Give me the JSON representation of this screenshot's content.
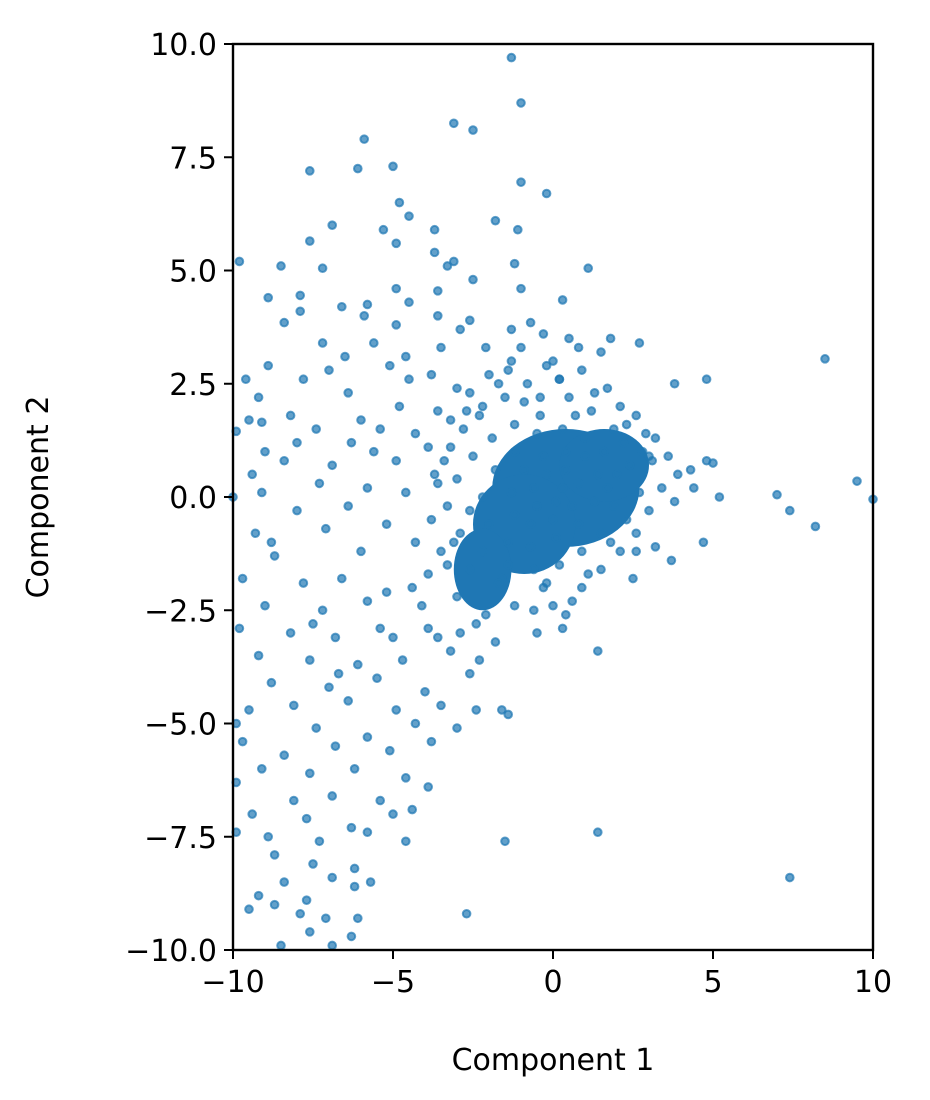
{
  "chart_data": {
    "type": "scatter",
    "title": "",
    "xlabel": "Component 1",
    "ylabel": "Component 2",
    "xlim": [
      -10,
      10
    ],
    "ylim": [
      -10,
      10
    ],
    "xticks": [
      -10,
      -5,
      0,
      5,
      10
    ],
    "xtick_labels": [
      "−10",
      "−5",
      "0",
      "5",
      "10"
    ],
    "yticks": [
      -10,
      -7.5,
      -5,
      -2.5,
      0,
      2.5,
      5,
      7.5,
      10
    ],
    "ytick_labels": [
      "−10.0",
      "−7.5",
      "−5.0",
      "−2.5",
      "0.0",
      "2.5",
      "5.0",
      "7.5",
      "10.0"
    ],
    "grid": false,
    "legend": "none",
    "marker_color": "#1f77b4",
    "marker_alpha": 0.7,
    "points": [
      [
        -1.3,
        9.7
      ],
      [
        -1.0,
        8.7
      ],
      [
        -3.1,
        8.25
      ],
      [
        -2.5,
        8.1
      ],
      [
        -5.9,
        7.9
      ],
      [
        -1.0,
        6.95
      ],
      [
        -6.1,
        7.25
      ],
      [
        -5.0,
        7.3
      ],
      [
        -7.6,
        7.2
      ],
      [
        -0.2,
        6.7
      ],
      [
        -4.8,
        6.5
      ],
      [
        -4.5,
        6.2
      ],
      [
        -1.8,
        6.1
      ],
      [
        -6.9,
        6.0
      ],
      [
        -5.3,
        5.9
      ],
      [
        -3.7,
        5.9
      ],
      [
        -1.1,
        5.9
      ],
      [
        -7.6,
        5.65
      ],
      [
        -4.9,
        5.6
      ],
      [
        -3.7,
        5.4
      ],
      [
        -9.8,
        5.2
      ],
      [
        -3.1,
        5.2
      ],
      [
        -3.3,
        5.1
      ],
      [
        -1.2,
        5.15
      ],
      [
        1.1,
        5.05
      ],
      [
        -8.5,
        5.1
      ],
      [
        -7.2,
        5.05
      ],
      [
        -2.5,
        4.8
      ],
      [
        -3.6,
        4.55
      ],
      [
        -4.9,
        4.6
      ],
      [
        -1.0,
        4.6
      ],
      [
        -7.9,
        4.45
      ],
      [
        -8.9,
        4.4
      ],
      [
        -4.5,
        4.3
      ],
      [
        -6.6,
        4.2
      ],
      [
        -5.8,
        4.25
      ],
      [
        0.3,
        4.35
      ],
      [
        -7.9,
        4.1
      ],
      [
        -3.6,
        4.0
      ],
      [
        -2.6,
        3.9
      ],
      [
        -5.9,
        4.0
      ],
      [
        -4.9,
        3.8
      ],
      [
        -1.3,
        3.7
      ],
      [
        -0.7,
        3.85
      ],
      [
        -2.9,
        3.7
      ],
      [
        -8.4,
        3.85
      ],
      [
        -0.3,
        3.6
      ],
      [
        0.5,
        3.5
      ],
      [
        1.8,
        3.5
      ],
      [
        -7.2,
        3.4
      ],
      [
        -5.6,
        3.4
      ],
      [
        -3.5,
        3.3
      ],
      [
        -1.0,
        3.3
      ],
      [
        0.8,
        3.3
      ],
      [
        2.7,
        3.4
      ],
      [
        -6.5,
        3.1
      ],
      [
        -4.6,
        3.1
      ],
      [
        -2.1,
        3.3
      ],
      [
        0.0,
        3.0
      ],
      [
        1.5,
        3.2
      ],
      [
        -8.9,
        2.9
      ],
      [
        -7.0,
        2.8
      ],
      [
        -5.1,
        2.9
      ],
      [
        -3.8,
        2.7
      ],
      [
        -1.4,
        2.8
      ],
      [
        -9.6,
        2.6
      ],
      [
        -7.8,
        2.6
      ],
      [
        -4.5,
        2.6
      ],
      [
        -1.7,
        2.5
      ],
      [
        0.2,
        2.6
      ],
      [
        3.8,
        2.5
      ],
      [
        4.8,
        2.6
      ],
      [
        -9.2,
        2.2
      ],
      [
        -6.4,
        2.3
      ],
      [
        -3.0,
        2.4
      ],
      [
        -2.2,
        2.0
      ],
      [
        -0.4,
        2.2
      ],
      [
        -8.2,
        1.8
      ],
      [
        -6.0,
        1.7
      ],
      [
        -4.8,
        2.0
      ],
      [
        -3.6,
        1.9
      ],
      [
        -9.5,
        1.7
      ],
      [
        -9.1,
        1.65
      ],
      [
        -5.4,
        1.5
      ],
      [
        -7.4,
        1.5
      ],
      [
        -2.7,
        1.9
      ],
      [
        -9.9,
        1.45
      ],
      [
        -8.0,
        1.2
      ],
      [
        -6.3,
        1.2
      ],
      [
        -4.3,
        1.4
      ],
      [
        -9.0,
        1.0
      ],
      [
        -5.6,
        1.0
      ],
      [
        -3.2,
        1.1
      ],
      [
        -8.4,
        0.8
      ],
      [
        -6.9,
        0.7
      ],
      [
        -4.9,
        0.8
      ],
      [
        -9.4,
        0.5
      ],
      [
        -7.3,
        0.3
      ],
      [
        -5.8,
        0.2
      ],
      [
        -3.7,
        0.5
      ],
      [
        -8.0,
        -0.3
      ],
      [
        -6.4,
        -0.2
      ],
      [
        -4.6,
        0.1
      ],
      [
        -9.3,
        -0.8
      ],
      [
        -7.1,
        -0.7
      ],
      [
        -5.2,
        -0.6
      ],
      [
        -8.7,
        -1.3
      ],
      [
        -6.0,
        -1.2
      ],
      [
        -4.3,
        -1.0
      ],
      [
        -9.7,
        -1.8
      ],
      [
        -7.8,
        -1.9
      ],
      [
        -6.6,
        -1.8
      ],
      [
        -5.2,
        -2.1
      ],
      [
        -3.9,
        -1.7
      ],
      [
        -9.0,
        -2.4
      ],
      [
        -7.2,
        -2.5
      ],
      [
        -5.8,
        -2.3
      ],
      [
        -4.1,
        -2.4
      ],
      [
        -3.0,
        -2.2
      ],
      [
        -9.8,
        -2.9
      ],
      [
        -8.2,
        -3.0
      ],
      [
        -6.8,
        -3.1
      ],
      [
        -5.4,
        -2.9
      ],
      [
        -3.6,
        -3.1
      ],
      [
        -2.4,
        -2.8
      ],
      [
        -9.2,
        -3.5
      ],
      [
        -7.6,
        -3.6
      ],
      [
        -6.1,
        -3.7
      ],
      [
        -4.7,
        -3.6
      ],
      [
        -3.2,
        -3.4
      ],
      [
        -8.8,
        -4.1
      ],
      [
        -7.0,
        -4.2
      ],
      [
        -5.5,
        -4.0
      ],
      [
        -4.0,
        -4.3
      ],
      [
        -2.6,
        -3.9
      ],
      [
        -9.5,
        -4.7
      ],
      [
        -8.1,
        -4.6
      ],
      [
        -6.4,
        -4.5
      ],
      [
        -4.9,
        -4.7
      ],
      [
        -3.5,
        -4.6
      ],
      [
        -9.9,
        -5.0
      ],
      [
        -7.4,
        -5.1
      ],
      [
        -5.8,
        -5.3
      ],
      [
        -4.3,
        -5.0
      ],
      [
        -3.0,
        -5.1
      ],
      [
        -2.4,
        -4.7
      ],
      [
        -9.7,
        -5.4
      ],
      [
        -8.4,
        -5.7
      ],
      [
        -6.8,
        -5.5
      ],
      [
        -5.1,
        -5.6
      ],
      [
        -3.8,
        -5.4
      ],
      [
        -9.1,
        -6.0
      ],
      [
        -7.6,
        -6.1
      ],
      [
        -6.2,
        -6.0
      ],
      [
        -4.6,
        -6.2
      ],
      [
        -9.9,
        -6.3
      ],
      [
        -8.1,
        -6.7
      ],
      [
        -6.9,
        -6.6
      ],
      [
        -5.4,
        -6.7
      ],
      [
        -3.9,
        -6.4
      ],
      [
        -9.4,
        -7.0
      ],
      [
        -7.7,
        -7.1
      ],
      [
        -6.3,
        -7.3
      ],
      [
        -5.0,
        -7.0
      ],
      [
        -4.4,
        -6.9
      ],
      [
        -9.9,
        -7.4
      ],
      [
        -8.9,
        -7.5
      ],
      [
        -7.3,
        -7.6
      ],
      [
        -5.8,
        -7.4
      ],
      [
        -4.6,
        -7.6
      ],
      [
        -8.7,
        -7.9
      ],
      [
        -7.5,
        -8.1
      ],
      [
        -6.2,
        -8.2
      ],
      [
        -5.7,
        -8.5
      ],
      [
        -8.4,
        -8.5
      ],
      [
        -6.9,
        -8.4
      ],
      [
        -9.2,
        -8.8
      ],
      [
        -7.7,
        -8.9
      ],
      [
        -6.2,
        -8.6
      ],
      [
        -9.5,
        -9.1
      ],
      [
        -8.7,
        -9.0
      ],
      [
        -7.9,
        -9.2
      ],
      [
        -7.1,
        -9.3
      ],
      [
        -6.1,
        -9.3
      ],
      [
        -2.7,
        -9.2
      ],
      [
        -7.6,
        -9.6
      ],
      [
        -6.3,
        -9.7
      ],
      [
        -8.5,
        -9.9
      ],
      [
        -6.9,
        -9.9
      ],
      [
        -1.5,
        -7.6
      ],
      [
        1.4,
        -7.4
      ],
      [
        7.4,
        -8.4
      ],
      [
        -1.6,
        -4.7
      ],
      [
        -1.4,
        -4.8
      ],
      [
        1.4,
        -3.4
      ],
      [
        2.5,
        -1.8
      ],
      [
        3.2,
        -1.1
      ],
      [
        3.8,
        -0.1
      ],
      [
        3.7,
        -1.4
      ],
      [
        4.7,
        -1.0
      ],
      [
        5.2,
        0.0
      ],
      [
        4.4,
        0.2
      ],
      [
        4.3,
        0.6
      ],
      [
        4.8,
        0.8
      ],
      [
        5.0,
        0.75
      ],
      [
        7.0,
        0.05
      ],
      [
        7.4,
        -0.3
      ],
      [
        8.2,
        -0.65
      ],
      [
        8.5,
        3.05
      ],
      [
        9.5,
        0.35
      ],
      [
        10.0,
        -0.05
      ],
      [
        -10.0,
        0.0
      ],
      [
        -9.1,
        0.1
      ],
      [
        -8.8,
        -1.0
      ],
      [
        -7.5,
        -2.8
      ],
      [
        -6.7,
        -3.9
      ],
      [
        -5.0,
        -3.1
      ],
      [
        -4.4,
        -2.0
      ],
      [
        -3.3,
        -1.5
      ],
      [
        -3.9,
        -2.9
      ],
      [
        -2.9,
        -3.0
      ],
      [
        -2.1,
        -2.6
      ],
      [
        -1.2,
        -2.4
      ],
      [
        -0.6,
        -2.5
      ],
      [
        0.0,
        -2.4
      ],
      [
        0.6,
        -2.3
      ],
      [
        -0.5,
        -3.0
      ],
      [
        0.3,
        -2.9
      ],
      [
        -1.8,
        -3.2
      ],
      [
        -2.3,
        -3.6
      ],
      [
        0.4,
        -2.6
      ],
      [
        -0.3,
        -2.0
      ],
      [
        -1.6,
        -1.8
      ],
      [
        -2.6,
        -1.6
      ],
      [
        -3.5,
        -1.2
      ],
      [
        -3.8,
        -0.5
      ],
      [
        -3.6,
        0.3
      ],
      [
        -3.9,
        1.1
      ],
      [
        -3.2,
        1.7
      ],
      [
        -2.6,
        2.3
      ],
      [
        -2.0,
        2.7
      ],
      [
        -1.3,
        3.0
      ],
      [
        -0.8,
        2.5
      ],
      [
        -0.2,
        2.9
      ],
      [
        0.9,
        2.8
      ],
      [
        1.3,
        2.3
      ],
      [
        2.1,
        2.0
      ],
      [
        2.6,
        1.8
      ],
      [
        2.9,
        1.4
      ],
      [
        3.2,
        1.3
      ],
      [
        3.6,
        0.9
      ],
      [
        3.9,
        0.5
      ],
      [
        3.4,
        0.2
      ],
      [
        3.0,
        -0.3
      ],
      [
        2.6,
        -0.8
      ],
      [
        2.1,
        -1.2
      ],
      [
        1.5,
        -1.6
      ],
      [
        0.9,
        -2.0
      ],
      [
        1.8,
        -1.0
      ],
      [
        2.3,
        -0.5
      ],
      [
        2.7,
        0.1
      ],
      [
        2.4,
        0.7
      ],
      [
        2.8,
        1.0
      ],
      [
        1.9,
        1.5
      ],
      [
        1.2,
        1.9
      ],
      [
        0.5,
        2.2
      ],
      [
        -0.4,
        1.8
      ],
      [
        -1.2,
        1.6
      ],
      [
        -1.9,
        1.3
      ],
      [
        -2.5,
        0.9
      ],
      [
        -3.0,
        0.4
      ],
      [
        -3.3,
        -0.2
      ],
      [
        -2.9,
        -0.8
      ],
      [
        -2.2,
        -1.2
      ],
      [
        -1.4,
        -1.5
      ],
      [
        -0.6,
        -1.6
      ],
      [
        0.2,
        -1.5
      ],
      [
        0.9,
        -1.2
      ],
      [
        1.5,
        -0.8
      ],
      [
        1.9,
        -0.2
      ],
      [
        2.0,
        0.5
      ],
      [
        1.6,
        1.0
      ],
      [
        1.0,
        1.3
      ],
      [
        0.3,
        1.5
      ],
      [
        -0.5,
        1.4
      ],
      [
        -1.2,
        1.0
      ],
      [
        -1.8,
        0.6
      ],
      [
        -2.2,
        0.0
      ],
      [
        -2.0,
        -0.6
      ],
      [
        -1.4,
        -1.0
      ],
      [
        -0.7,
        -1.1
      ],
      [
        0.1,
        -0.9
      ],
      [
        0.8,
        -0.6
      ],
      [
        1.3,
        -0.1
      ],
      [
        1.4,
        0.5
      ],
      [
        1.0,
        0.9
      ],
      [
        0.4,
        1.0
      ],
      [
        -0.3,
        0.9
      ],
      [
        -0.9,
        0.6
      ],
      [
        -1.3,
        0.1
      ],
      [
        -1.2,
        -0.4
      ],
      [
        -0.7,
        -0.6
      ],
      [
        0.0,
        -0.5
      ],
      [
        0.6,
        -0.2
      ],
      [
        0.8,
        0.3
      ],
      [
        0.4,
        0.6
      ],
      [
        -0.2,
        0.5
      ],
      [
        -0.6,
        0.2
      ],
      [
        -0.5,
        -0.2
      ],
      [
        0.1,
        -0.1
      ],
      [
        0.3,
        0.2
      ],
      [
        1.7,
        0.2
      ],
      [
        2.2,
        1.2
      ],
      [
        -2.6,
        -0.3
      ],
      [
        -3.1,
        -1.0
      ],
      [
        -1.7,
        -1.9
      ],
      [
        -0.2,
        -1.9
      ],
      [
        1.1,
        -1.7
      ],
      [
        2.6,
        -1.2
      ],
      [
        3.1,
        0.8
      ],
      [
        1.7,
        2.4
      ],
      [
        0.2,
        2.6
      ],
      [
        -1.5,
        2.2
      ],
      [
        -2.8,
        1.5
      ],
      [
        -3.4,
        0.8
      ],
      [
        -2.3,
        1.8
      ],
      [
        -0.9,
        2.1
      ],
      [
        0.7,
        1.8
      ],
      [
        2.3,
        1.6
      ],
      [
        3.0,
        0.9
      ]
    ]
  }
}
